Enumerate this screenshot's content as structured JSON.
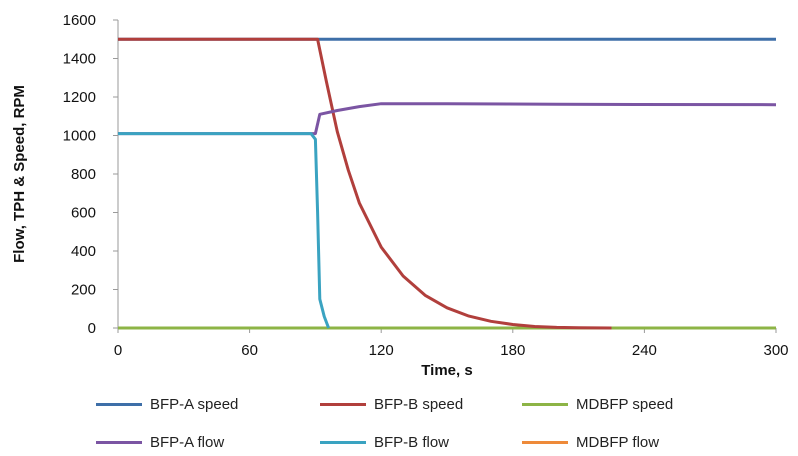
{
  "chart_data": {
    "type": "line",
    "title": "",
    "xlabel": "Time, s",
    "ylabel": "Flow, TPH & Speed, RPM",
    "xlim": [
      0,
      300
    ],
    "ylim": [
      0,
      1600
    ],
    "xticks": [
      "0",
      "60",
      "120",
      "180",
      "240",
      "300"
    ],
    "yticks": [
      "0",
      "200",
      "400",
      "600",
      "800",
      "1000",
      "1200",
      "1400",
      "1600"
    ],
    "grid": false,
    "legend_position": "bottom",
    "series": [
      {
        "name": "BFP-A speed",
        "color": "#3e6fa8",
        "x": [
          0,
          92,
          300
        ],
        "y": [
          1500,
          1500,
          1500
        ]
      },
      {
        "name": "BFP-B speed",
        "color": "#b13f3c",
        "x": [
          0,
          91,
          95,
          100,
          105,
          110,
          120,
          130,
          140,
          150,
          160,
          170,
          180,
          190,
          200,
          210,
          225
        ],
        "y": [
          1500,
          1500,
          1280,
          1020,
          820,
          650,
          420,
          270,
          170,
          105,
          62,
          35,
          18,
          8,
          3,
          1,
          0
        ]
      },
      {
        "name": "MDBFP speed",
        "color": "#8db446",
        "x": [
          0,
          300
        ],
        "y": [
          0,
          0
        ]
      },
      {
        "name": "BFP-A flow",
        "color": "#7b55a3",
        "x": [
          0,
          90,
          92,
          100,
          110,
          120,
          150,
          200,
          300
        ],
        "y": [
          1010,
          1010,
          1110,
          1130,
          1150,
          1165,
          1165,
          1162,
          1160
        ]
      },
      {
        "name": "BFP-B flow",
        "color": "#3aa3c1",
        "x": [
          0,
          88,
          90,
          91,
          92,
          94,
          96
        ],
        "y": [
          1010,
          1010,
          980,
          600,
          150,
          60,
          0
        ]
      },
      {
        "name": "MDBFP flow",
        "color": "#ee8a3a",
        "x": [
          0,
          300
        ],
        "y": [
          0,
          0
        ]
      }
    ]
  }
}
